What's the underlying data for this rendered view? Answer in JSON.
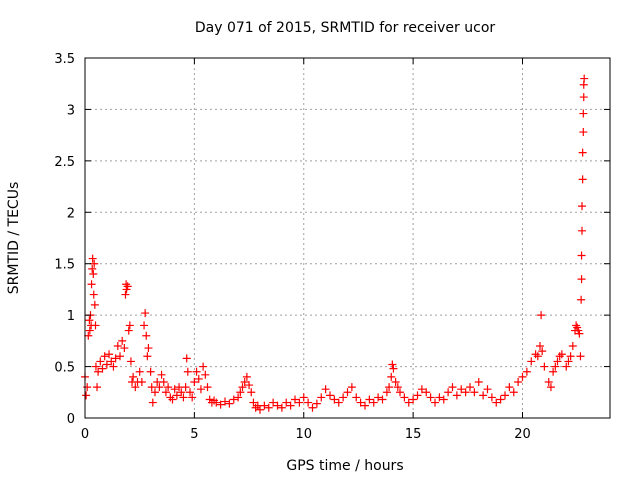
{
  "chart_data": {
    "type": "scatter",
    "title": "Day 071 of 2015, SRMTID for receiver ucor",
    "xlabel": "GPS time / hours",
    "ylabel": "SRMTID / TECUs",
    "xlim": [
      0,
      24
    ],
    "ylim": [
      0,
      3.5
    ],
    "grid": true,
    "marker": "+",
    "color": "#ff0000",
    "xticks": [
      {
        "value": 0,
        "label": "0"
      },
      {
        "value": 5,
        "label": "5"
      },
      {
        "value": 10,
        "label": "10"
      },
      {
        "value": 15,
        "label": "15"
      },
      {
        "value": 20,
        "label": "20"
      }
    ],
    "yticks": [
      {
        "value": 0,
        "label": "0"
      },
      {
        "value": 0.5,
        "label": "0.5"
      },
      {
        "value": 1,
        "label": "1"
      },
      {
        "value": 1.5,
        "label": "1.5"
      },
      {
        "value": 2,
        "label": "2"
      },
      {
        "value": 2.5,
        "label": "2.5"
      },
      {
        "value": 3,
        "label": "3"
      },
      {
        "value": 3.5,
        "label": "3.5"
      }
    ],
    "series": [
      {
        "name": "SRMTID",
        "points": [
          [
            0.0,
            0.4
          ],
          [
            0.05,
            0.22
          ],
          [
            0.1,
            0.3
          ],
          [
            0.15,
            0.8
          ],
          [
            0.2,
            0.95
          ],
          [
            0.22,
            0.85
          ],
          [
            0.25,
            1.0
          ],
          [
            0.28,
            0.9
          ],
          [
            0.3,
            1.3
          ],
          [
            0.33,
            1.45
          ],
          [
            0.35,
            1.55
          ],
          [
            0.38,
            1.4
          ],
          [
            0.4,
            1.2
          ],
          [
            0.42,
            1.5
          ],
          [
            0.45,
            1.1
          ],
          [
            0.48,
            0.9
          ],
          [
            0.5,
            0.5
          ],
          [
            0.55,
            0.3
          ],
          [
            0.6,
            0.45
          ],
          [
            0.7,
            0.55
          ],
          [
            0.8,
            0.48
          ],
          [
            0.9,
            0.6
          ],
          [
            1.0,
            0.52
          ],
          [
            1.1,
            0.62
          ],
          [
            1.2,
            0.55
          ],
          [
            1.3,
            0.5
          ],
          [
            1.4,
            0.58
          ],
          [
            1.5,
            0.7
          ],
          [
            1.6,
            0.6
          ],
          [
            1.7,
            0.75
          ],
          [
            1.8,
            0.68
          ],
          [
            1.85,
            1.2
          ],
          [
            1.88,
            1.3
          ],
          [
            1.9,
            1.25
          ],
          [
            1.95,
            1.28
          ],
          [
            2.0,
            0.85
          ],
          [
            2.05,
            0.9
          ],
          [
            2.1,
            0.55
          ],
          [
            2.15,
            0.35
          ],
          [
            2.2,
            0.4
          ],
          [
            2.3,
            0.3
          ],
          [
            2.4,
            0.35
          ],
          [
            2.5,
            0.45
          ],
          [
            2.6,
            0.35
          ],
          [
            2.7,
            0.9
          ],
          [
            2.75,
            1.02
          ],
          [
            2.8,
            0.8
          ],
          [
            2.85,
            0.6
          ],
          [
            2.9,
            0.68
          ],
          [
            3.0,
            0.45
          ],
          [
            3.05,
            0.3
          ],
          [
            3.1,
            0.15
          ],
          [
            3.2,
            0.25
          ],
          [
            3.3,
            0.35
          ],
          [
            3.4,
            0.3
          ],
          [
            3.5,
            0.42
          ],
          [
            3.6,
            0.35
          ],
          [
            3.7,
            0.25
          ],
          [
            3.8,
            0.3
          ],
          [
            3.9,
            0.2
          ],
          [
            4.0,
            0.18
          ],
          [
            4.1,
            0.28
          ],
          [
            4.2,
            0.22
          ],
          [
            4.3,
            0.3
          ],
          [
            4.4,
            0.25
          ],
          [
            4.5,
            0.2
          ],
          [
            4.6,
            0.3
          ],
          [
            4.65,
            0.58
          ],
          [
            4.7,
            0.45
          ],
          [
            4.8,
            0.25
          ],
          [
            4.9,
            0.2
          ],
          [
            5.0,
            0.35
          ],
          [
            5.1,
            0.45
          ],
          [
            5.2,
            0.38
          ],
          [
            5.3,
            0.28
          ],
          [
            5.4,
            0.5
          ],
          [
            5.5,
            0.42
          ],
          [
            5.6,
            0.3
          ],
          [
            5.7,
            0.18
          ],
          [
            5.8,
            0.15
          ],
          [
            5.9,
            0.17
          ],
          [
            6.0,
            0.15
          ],
          [
            6.2,
            0.13
          ],
          [
            6.4,
            0.16
          ],
          [
            6.6,
            0.14
          ],
          [
            6.8,
            0.18
          ],
          [
            7.0,
            0.2
          ],
          [
            7.1,
            0.25
          ],
          [
            7.2,
            0.3
          ],
          [
            7.3,
            0.35
          ],
          [
            7.4,
            0.4
          ],
          [
            7.5,
            0.32
          ],
          [
            7.6,
            0.25
          ],
          [
            7.7,
            0.15
          ],
          [
            7.8,
            0.1
          ],
          [
            7.9,
            0.12
          ],
          [
            8.0,
            0.08
          ],
          [
            8.2,
            0.12
          ],
          [
            8.4,
            0.1
          ],
          [
            8.6,
            0.15
          ],
          [
            8.8,
            0.12
          ],
          [
            9.0,
            0.1
          ],
          [
            9.2,
            0.15
          ],
          [
            9.4,
            0.12
          ],
          [
            9.6,
            0.18
          ],
          [
            9.8,
            0.15
          ],
          [
            10.0,
            0.2
          ],
          [
            10.2,
            0.15
          ],
          [
            10.4,
            0.1
          ],
          [
            10.6,
            0.14
          ],
          [
            10.8,
            0.2
          ],
          [
            11.0,
            0.28
          ],
          [
            11.2,
            0.22
          ],
          [
            11.4,
            0.18
          ],
          [
            11.6,
            0.15
          ],
          [
            11.8,
            0.2
          ],
          [
            12.0,
            0.25
          ],
          [
            12.2,
            0.3
          ],
          [
            12.4,
            0.2
          ],
          [
            12.6,
            0.15
          ],
          [
            12.8,
            0.12
          ],
          [
            13.0,
            0.18
          ],
          [
            13.2,
            0.15
          ],
          [
            13.4,
            0.2
          ],
          [
            13.6,
            0.18
          ],
          [
            13.8,
            0.25
          ],
          [
            13.9,
            0.3
          ],
          [
            14.0,
            0.4
          ],
          [
            14.05,
            0.52
          ],
          [
            14.1,
            0.48
          ],
          [
            14.2,
            0.35
          ],
          [
            14.3,
            0.3
          ],
          [
            14.4,
            0.25
          ],
          [
            14.6,
            0.2
          ],
          [
            14.8,
            0.15
          ],
          [
            15.0,
            0.18
          ],
          [
            15.2,
            0.22
          ],
          [
            15.4,
            0.28
          ],
          [
            15.6,
            0.25
          ],
          [
            15.8,
            0.2
          ],
          [
            16.0,
            0.15
          ],
          [
            16.2,
            0.2
          ],
          [
            16.4,
            0.18
          ],
          [
            16.6,
            0.25
          ],
          [
            16.8,
            0.3
          ],
          [
            17.0,
            0.22
          ],
          [
            17.2,
            0.28
          ],
          [
            17.4,
            0.25
          ],
          [
            17.6,
            0.3
          ],
          [
            17.8,
            0.25
          ],
          [
            18.0,
            0.35
          ],
          [
            18.2,
            0.22
          ],
          [
            18.4,
            0.28
          ],
          [
            18.6,
            0.2
          ],
          [
            18.8,
            0.15
          ],
          [
            19.0,
            0.18
          ],
          [
            19.2,
            0.22
          ],
          [
            19.4,
            0.3
          ],
          [
            19.6,
            0.25
          ],
          [
            19.8,
            0.35
          ],
          [
            20.0,
            0.4
          ],
          [
            20.2,
            0.45
          ],
          [
            20.4,
            0.55
          ],
          [
            20.6,
            0.62
          ],
          [
            20.7,
            0.6
          ],
          [
            20.8,
            0.7
          ],
          [
            20.85,
            1.0
          ],
          [
            20.9,
            0.65
          ],
          [
            21.0,
            0.5
          ],
          [
            21.2,
            0.35
          ],
          [
            21.3,
            0.3
          ],
          [
            21.4,
            0.45
          ],
          [
            21.5,
            0.5
          ],
          [
            21.6,
            0.55
          ],
          [
            21.7,
            0.6
          ],
          [
            21.8,
            0.62
          ],
          [
            22.0,
            0.5
          ],
          [
            22.1,
            0.55
          ],
          [
            22.2,
            0.6
          ],
          [
            22.3,
            0.7
          ],
          [
            22.4,
            0.85
          ],
          [
            22.45,
            0.9
          ],
          [
            22.5,
            0.88
          ],
          [
            22.55,
            0.85
          ],
          [
            22.6,
            0.82
          ],
          [
            22.65,
            0.6
          ],
          [
            22.68,
            1.15
          ],
          [
            22.7,
            1.35
          ],
          [
            22.7,
            1.58
          ],
          [
            22.72,
            1.82
          ],
          [
            22.72,
            2.06
          ],
          [
            22.75,
            2.32
          ],
          [
            22.75,
            2.58
          ],
          [
            22.78,
            2.78
          ],
          [
            22.78,
            2.96
          ],
          [
            22.8,
            3.12
          ],
          [
            22.8,
            3.24
          ],
          [
            22.82,
            3.3
          ]
        ]
      }
    ]
  }
}
